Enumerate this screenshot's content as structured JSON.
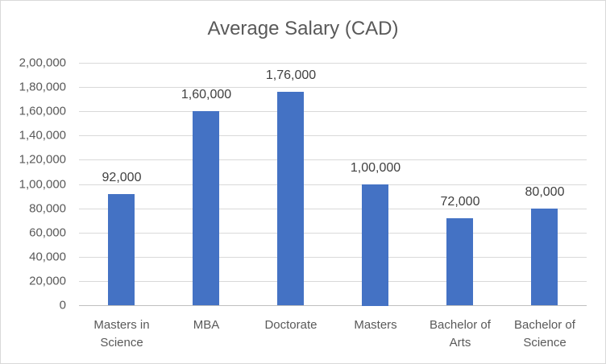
{
  "chart_data": {
    "type": "bar",
    "title": "Average Salary (CAD)",
    "xlabel": "",
    "ylabel": "",
    "categories": [
      "Masters in Science",
      "MBA",
      "Doctorate",
      "Masters",
      "Bachelor of Arts",
      "Bachelor of Science"
    ],
    "category_lines": [
      [
        "Masters in",
        "Science"
      ],
      [
        "MBA",
        ""
      ],
      [
        "Doctorate",
        ""
      ],
      [
        "Masters",
        ""
      ],
      [
        "Bachelor of",
        "Arts"
      ],
      [
        "Bachelor of",
        "Science"
      ]
    ],
    "values": [
      92000,
      160000,
      176000,
      100000,
      72000,
      80000
    ],
    "value_labels": [
      "92,000",
      "1,60,000",
      "1,76,000",
      "1,00,000",
      "72,000",
      "80,000"
    ],
    "ylim": [
      0,
      200000
    ],
    "yticks": [
      0,
      20000,
      40000,
      60000,
      80000,
      100000,
      120000,
      140000,
      160000,
      180000,
      200000
    ],
    "ytick_labels": [
      "0",
      "20,000",
      "40,000",
      "60,000",
      "80,000",
      "1,00,000",
      "1,20,000",
      "1,40,000",
      "1,60,000",
      "1,80,000",
      "2,00,000"
    ],
    "grid": true,
    "legend": "none",
    "bar_color": "#4472c4"
  }
}
